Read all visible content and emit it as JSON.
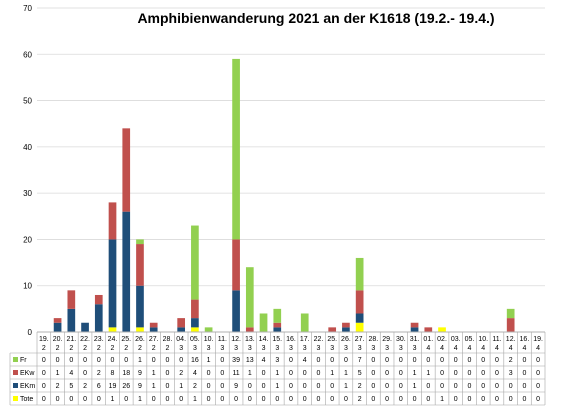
{
  "chart_data": {
    "type": "bar",
    "stacked": true,
    "title": "Amphibienwanderung 2021 an der K1618 (19.2.- 19.4.)",
    "ylim": [
      0,
      70
    ],
    "yticks": [
      0,
      10,
      20,
      30,
      40,
      50,
      60,
      70
    ],
    "grid": "horizontal",
    "legend_placement": "table-left",
    "categories": [
      {
        "day": "19.",
        "month": "2"
      },
      {
        "day": "20.",
        "month": "2"
      },
      {
        "day": "21.",
        "month": "2"
      },
      {
        "day": "22.",
        "month": "2"
      },
      {
        "day": "23.",
        "month": "2"
      },
      {
        "day": "24.",
        "month": "2"
      },
      {
        "day": "25.",
        "month": "2"
      },
      {
        "day": "26.",
        "month": "2"
      },
      {
        "day": "27.",
        "month": "2"
      },
      {
        "day": "28.",
        "month": "2"
      },
      {
        "day": "04.",
        "month": "3"
      },
      {
        "day": "05.",
        "month": "3"
      },
      {
        "day": "10.",
        "month": "3"
      },
      {
        "day": "11.",
        "month": "3"
      },
      {
        "day": "12.",
        "month": "3"
      },
      {
        "day": "13.",
        "month": "3"
      },
      {
        "day": "14.",
        "month": "3"
      },
      {
        "day": "15.",
        "month": "3"
      },
      {
        "day": "16.",
        "month": "3"
      },
      {
        "day": "17.",
        "month": "3"
      },
      {
        "day": "22.",
        "month": "3"
      },
      {
        "day": "25.",
        "month": "3"
      },
      {
        "day": "26.",
        "month": "3"
      },
      {
        "day": "27.",
        "month": "3"
      },
      {
        "day": "28.",
        "month": "3"
      },
      {
        "day": "29.",
        "month": "3"
      },
      {
        "day": "30.",
        "month": "3"
      },
      {
        "day": "31.",
        "month": "3"
      },
      {
        "day": "01.",
        "month": "4"
      },
      {
        "day": "02.",
        "month": "4"
      },
      {
        "day": "03.",
        "month": "4"
      },
      {
        "day": "05.",
        "month": "4"
      },
      {
        "day": "10.",
        "month": "4"
      },
      {
        "day": "11.",
        "month": "4"
      },
      {
        "day": "12.",
        "month": "4"
      },
      {
        "day": "16.",
        "month": "4"
      },
      {
        "day": "19.",
        "month": "4"
      }
    ],
    "series": [
      {
        "name": "Fr",
        "color": "#92d050",
        "values": [
          0,
          0,
          0,
          0,
          0,
          0,
          0,
          1,
          0,
          0,
          0,
          16,
          1,
          0,
          39,
          13,
          4,
          3,
          0,
          4,
          0,
          0,
          0,
          7,
          0,
          0,
          0,
          0,
          0,
          0,
          0,
          0,
          0,
          0,
          2,
          0,
          0
        ]
      },
      {
        "name": "EKw",
        "color": "#c0504d",
        "values": [
          0,
          1,
          4,
          0,
          2,
          8,
          18,
          9,
          1,
          0,
          2,
          4,
          0,
          0,
          11,
          1,
          0,
          1,
          0,
          0,
          0,
          1,
          1,
          5,
          0,
          0,
          0,
          1,
          1,
          0,
          0,
          0,
          0,
          0,
          3,
          0,
          0
        ]
      },
      {
        "name": "EKm",
        "color": "#1f4e79",
        "values": [
          0,
          2,
          5,
          2,
          6,
          19,
          26,
          9,
          1,
          0,
          1,
          2,
          0,
          0,
          9,
          0,
          0,
          1,
          0,
          0,
          0,
          0,
          1,
          2,
          0,
          0,
          0,
          1,
          0,
          0,
          0,
          0,
          0,
          0,
          0,
          0,
          0
        ]
      },
      {
        "name": "Tote",
        "color": "#ffff00",
        "values": [
          0,
          0,
          0,
          0,
          0,
          1,
          0,
          1,
          0,
          0,
          0,
          1,
          0,
          0,
          0,
          0,
          0,
          0,
          0,
          0,
          0,
          0,
          0,
          2,
          0,
          0,
          0,
          0,
          0,
          1,
          0,
          0,
          0,
          0,
          0,
          0,
          0
        ]
      }
    ]
  }
}
